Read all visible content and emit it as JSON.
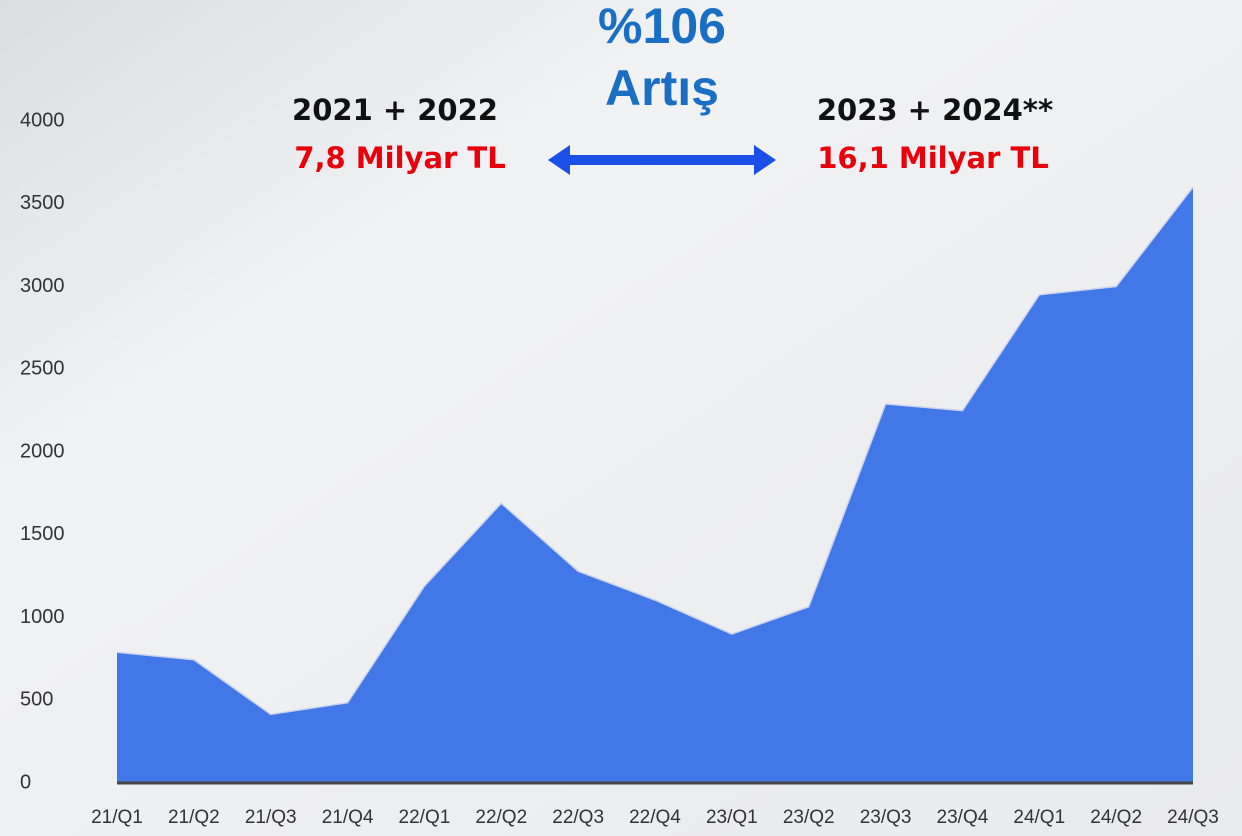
{
  "chart_data": {
    "type": "area",
    "categories": [
      "21/Q1",
      "21/Q2",
      "21/Q3",
      "21/Q4",
      "22/Q1",
      "22/Q2",
      "22/Q3",
      "22/Q4",
      "23/Q1",
      "23/Q2",
      "23/Q3",
      "23/Q4",
      "24/Q1",
      "24/Q2",
      "24/Q3"
    ],
    "values": [
      790,
      745,
      415,
      485,
      1190,
      1690,
      1280,
      1105,
      900,
      1065,
      2290,
      2250,
      2950,
      3000,
      3600
    ],
    "color": "#4177e6",
    "ylim": [
      0,
      4000
    ],
    "yticks": [
      0,
      500,
      1000,
      1500,
      2000,
      2500,
      3000,
      3500,
      4000
    ],
    "grid": false,
    "annotations": [
      "%106",
      "Artış",
      "2021 + 2022",
      "7,8 Milyar TL",
      "2023 + 2024**",
      "16,1 Milyar TL"
    ]
  }
}
